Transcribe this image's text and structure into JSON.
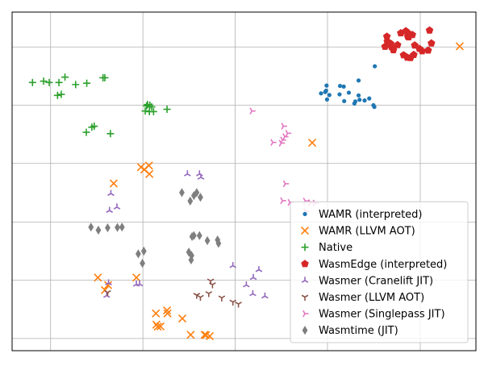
{
  "chart_data": {
    "type": "scatter",
    "title": "",
    "xlabel": "",
    "ylabel": "",
    "xlim": [
      0,
      100
    ],
    "ylim": [
      0,
      100
    ],
    "grid": true,
    "x_ticks_labeled": false,
    "y_ticks_labeled": false,
    "legend": {
      "placement": "lower-right"
    },
    "series": [
      {
        "name": "WAMR (interpreted)",
        "marker": "circle",
        "color": "#1f77b4",
        "points": [
          [
            78.2,
            84.0
          ],
          [
            70.7,
            78.2
          ],
          [
            74.7,
            79.8
          ],
          [
            72.6,
            76.2
          ],
          [
            71.5,
            78.0
          ],
          [
            66.6,
            76.0
          ],
          [
            67.7,
            76.8
          ],
          [
            67.8,
            78.3
          ],
          [
            67.9,
            74.2
          ],
          [
            67.5,
            76.4
          ],
          [
            70.6,
            75.7
          ],
          [
            74.7,
            75.4
          ],
          [
            76.0,
            73.9
          ],
          [
            78.1,
            72.0
          ],
          [
            77.9,
            72.5
          ],
          [
            71.6,
            73.7
          ],
          [
            74.9,
            74.1
          ],
          [
            77.0,
            74.5
          ],
          [
            73.8,
            73.0
          ],
          [
            68.4,
            75.5
          ],
          [
            74.0,
            73.6
          ]
        ]
      },
      {
        "name": "WAMR (LLVM AOT)",
        "marker": "x",
        "color": "#ff7f0e",
        "points": [
          [
            96.5,
            89.9
          ],
          [
            64.7,
            61.4
          ],
          [
            27.8,
            54.2
          ],
          [
            28.5,
            53.5
          ],
          [
            29.5,
            54.7
          ],
          [
            29.6,
            52.2
          ],
          [
            21.9,
            49.4
          ],
          [
            18.5,
            21.6
          ],
          [
            20.7,
            19.4
          ],
          [
            26.8,
            21.6
          ],
          [
            20.0,
            17.9
          ],
          [
            33.5,
            11.0
          ],
          [
            31.0,
            11.0
          ],
          [
            33.4,
            11.9
          ],
          [
            36.7,
            9.5
          ],
          [
            31.1,
            7.7
          ],
          [
            31.4,
            7.1
          ],
          [
            32.0,
            7.2
          ],
          [
            38.5,
            4.7
          ],
          [
            41.5,
            4.7
          ],
          [
            41.8,
            4.6
          ],
          [
            42.6,
            4.3
          ]
        ]
      },
      {
        "name": "Native",
        "marker": "plus",
        "color": "#2ca02c",
        "points": [
          [
            4.4,
            79.2
          ],
          [
            6.8,
            79.6
          ],
          [
            8.0,
            79.2
          ],
          [
            10.1,
            79.2
          ],
          [
            11.4,
            80.8
          ],
          [
            13.7,
            78.6
          ],
          [
            16.1,
            79.0
          ],
          [
            19.6,
            80.6
          ],
          [
            20.0,
            80.6
          ],
          [
            9.8,
            75.4
          ],
          [
            10.6,
            75.7
          ],
          [
            29.2,
            72.7
          ],
          [
            29.0,
            72.3
          ],
          [
            29.7,
            72.5
          ],
          [
            30.1,
            72.0
          ],
          [
            28.7,
            70.8
          ],
          [
            29.6,
            70.6
          ],
          [
            30.5,
            70.6
          ],
          [
            33.4,
            71.3
          ],
          [
            17.2,
            66.0
          ],
          [
            17.7,
            66.3
          ],
          [
            16.0,
            64.5
          ],
          [
            21.2,
            64.1
          ]
        ]
      },
      {
        "name": "WasmEdge (interpreted)",
        "marker": "pentagon",
        "color": "#d62728",
        "points": [
          [
            83.8,
            93.8
          ],
          [
            85.3,
            92.8
          ],
          [
            85.7,
            93.5
          ],
          [
            84.9,
            94.4
          ],
          [
            86.3,
            93.3
          ],
          [
            85.5,
            92.6
          ],
          [
            80.8,
            92.8
          ],
          [
            80.9,
            91.3
          ],
          [
            81.0,
            90.4
          ],
          [
            81.8,
            89.7
          ],
          [
            81.6,
            90.7
          ],
          [
            83.1,
            90.3
          ],
          [
            80.4,
            89.8
          ],
          [
            82.2,
            88.8
          ],
          [
            86.8,
            90.2
          ],
          [
            87.8,
            89.2
          ],
          [
            88.4,
            88.5
          ],
          [
            89.7,
            88.7
          ],
          [
            90.4,
            90.8
          ],
          [
            90.0,
            94.6
          ],
          [
            84.4,
            87.3
          ],
          [
            85.2,
            86.6
          ],
          [
            85.9,
            86.5
          ],
          [
            86.6,
            87.4
          ]
        ]
      },
      {
        "name": "Wasmer (Cranelift JIT)",
        "marker": "tri_down",
        "color": "#9467bd",
        "points": [
          [
            37.8,
            52.2
          ],
          [
            40.4,
            52.2
          ],
          [
            40.7,
            51.2
          ],
          [
            21.3,
            46.4
          ],
          [
            22.6,
            42.4
          ],
          [
            21.0,
            41.4
          ],
          [
            47.6,
            25.1
          ],
          [
            53.2,
            23.9
          ],
          [
            52.0,
            21.6
          ],
          [
            50.5,
            19.4
          ],
          [
            51.9,
            16.8
          ],
          [
            54.5,
            16.1
          ],
          [
            20.8,
            20.0
          ],
          [
            26.8,
            19.6
          ],
          [
            27.5,
            19.7
          ],
          [
            20.4,
            16.3
          ]
        ]
      },
      {
        "name": "Wasmer (LLVM AOT)",
        "marker": "tri_up",
        "color": "#8c564b",
        "points": [
          [
            20.6,
            17.2
          ],
          [
            42.8,
            20.6
          ],
          [
            43.2,
            19.5
          ],
          [
            39.8,
            16.4
          ],
          [
            42.4,
            16.9
          ],
          [
            45.2,
            15.6
          ],
          [
            47.6,
            14.4
          ],
          [
            48.8,
            13.8
          ],
          [
            40.6,
            15.8
          ]
        ]
      },
      {
        "name": "Wasmer (Singlepass JIT)",
        "marker": "tri_left",
        "color": "#e377c2",
        "points": [
          [
            51.7,
            70.8
          ],
          [
            58.5,
            66.3
          ],
          [
            59.4,
            64.2
          ],
          [
            58.3,
            62.2
          ],
          [
            58.0,
            61.3
          ],
          [
            56.2,
            61.5
          ],
          [
            58.8,
            63.2
          ],
          [
            58.9,
            49.3
          ],
          [
            58.3,
            44.3
          ],
          [
            59.9,
            43.8
          ],
          [
            63.2,
            44.2
          ],
          [
            64.3,
            43.7
          ],
          [
            65.3,
            43.6
          ],
          [
            63.3,
            41.1
          ]
        ]
      },
      {
        "name": "Wasmtime (JIT)",
        "marker": "diamond",
        "color": "#7f7f7f",
        "points": [
          [
            36.6,
            46.7
          ],
          [
            39.2,
            45.8
          ],
          [
            39.8,
            46.7
          ],
          [
            38.4,
            44.2
          ],
          [
            40.6,
            45.3
          ],
          [
            17.0,
            36.5
          ],
          [
            18.6,
            35.6
          ],
          [
            20.6,
            36.3
          ],
          [
            22.7,
            36.4
          ],
          [
            23.7,
            36.5
          ],
          [
            38.8,
            33.7
          ],
          [
            39.2,
            34.0
          ],
          [
            40.4,
            34.0
          ],
          [
            42.1,
            32.5
          ],
          [
            44.5,
            31.7
          ],
          [
            44.3,
            32.7
          ],
          [
            28.4,
            29.4
          ],
          [
            27.2,
            28.6
          ],
          [
            28.1,
            25.8
          ],
          [
            38.1,
            29.1
          ],
          [
            38.7,
            28.1
          ],
          [
            38.6,
            26.8
          ]
        ]
      }
    ]
  }
}
